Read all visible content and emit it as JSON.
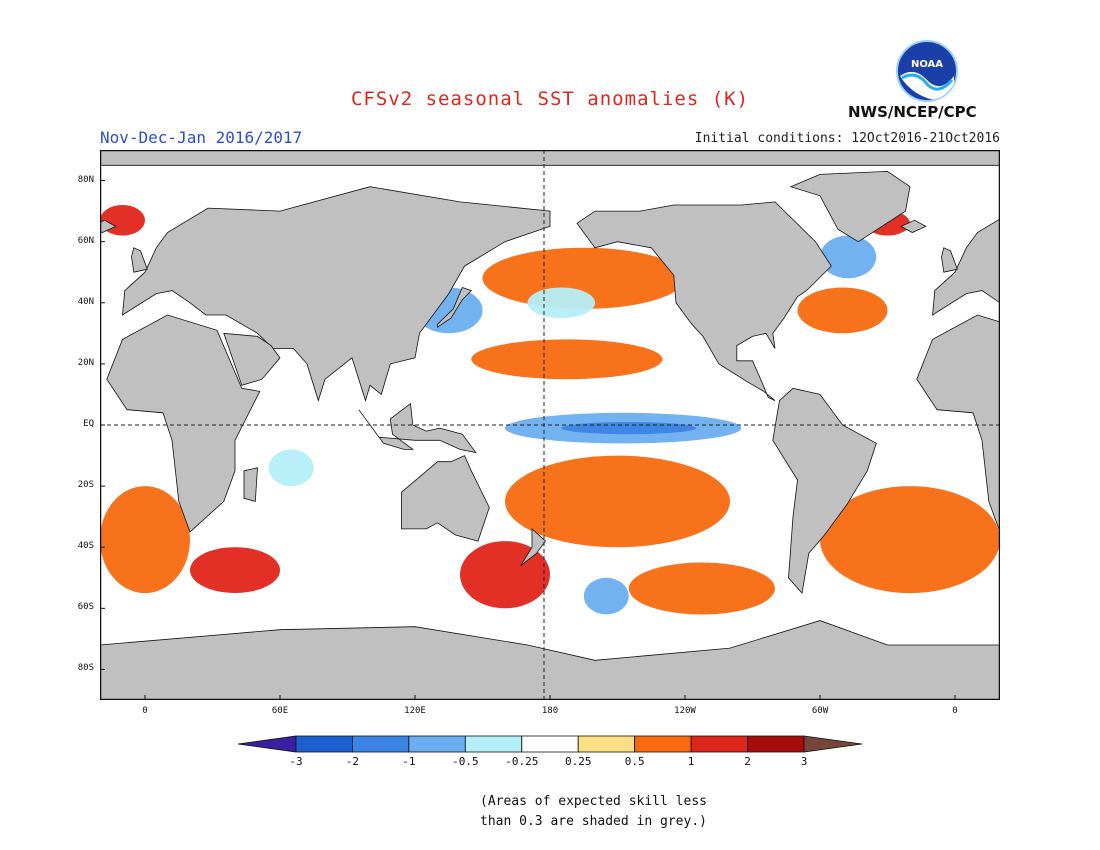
{
  "title": "CFSv2 seasonal SST anomalies (K)",
  "period": "Nov-Dec-Jan 2016/2017",
  "initial_conditions": "Initial conditions: 12Oct2016-21Oct2016",
  "agency": "NWS/NCEP/CPC",
  "logo_text": "NOAA",
  "lat_labels": [
    "80N",
    "60N",
    "40N",
    "20N",
    "EQ",
    "20S",
    "40S",
    "60S",
    "80S"
  ],
  "lon_labels": [
    "0",
    "60E",
    "120E",
    "180",
    "120W",
    "60W",
    "0"
  ],
  "colorbar": {
    "labels": [
      "-3",
      "-2",
      "-1",
      "-0.5",
      "-0.25",
      "0.25",
      "0.5",
      "1",
      "2",
      "3"
    ],
    "colors": [
      "#3a1fa0",
      "#1e5fd0",
      "#3c84e4",
      "#6aaef0",
      "#b4eef8",
      "#ffffff",
      "#fbe083",
      "#f86a10",
      "#e0251b",
      "#a80d0d",
      "#77463a"
    ]
  },
  "colors": {
    "land": "#c0c0c0",
    "ocean_neutral": "#ffffff",
    "title": "#e0251b",
    "period": "#2a4fd0"
  },
  "note_lines": [
    "(Areas of expected skill less",
    "than 0.3 are shaded in grey.)"
  ],
  "chart_data": {
    "type": "heatmap",
    "title": "CFSv2 seasonal SST anomalies (K)",
    "variable": "SST anomaly",
    "units": "K",
    "period": "Nov-Dec-Jan 2016/2017",
    "initial_conditions": "12Oct2016-21Oct2016",
    "color_levels": [
      -3,
      -2,
      -1,
      -0.5,
      -0.25,
      0.25,
      0.5,
      1,
      2,
      3
    ],
    "x_ticks": [
      "0",
      "60E",
      "120E",
      "180",
      "120W",
      "60W",
      "0"
    ],
    "y_ticks": [
      "80N",
      "60N",
      "40N",
      "20N",
      "EQ",
      "20S",
      "40S",
      "60S",
      "80S"
    ],
    "lon_range": [
      -20,
      380
    ],
    "lat_range": [
      -90,
      90
    ],
    "grey_mask_meaning": "expected skill less than 0.3",
    "regions": [
      {
        "lon": [
          160,
          265
        ],
        "lat": [
          -6,
          4
        ],
        "value": -0.75
      },
      {
        "lon": [
          185,
          245
        ],
        "lat": [
          -3,
          1
        ],
        "value": -1.1
      },
      {
        "lon": [
          145,
          230
        ],
        "lat": [
          15,
          28
        ],
        "value": 0.8
      },
      {
        "lon": [
          150,
          240
        ],
        "lat": [
          38,
          58
        ],
        "value": 0.8
      },
      {
        "lon": [
          170,
          200
        ],
        "lat": [
          35,
          45
        ],
        "value": -0.5
      },
      {
        "lon": [
          120,
          150
        ],
        "lat": [
          30,
          45
        ],
        "value": -0.6
      },
      {
        "lon": [
          160,
          260
        ],
        "lat": [
          -40,
          -10
        ],
        "value": 0.8
      },
      {
        "lon": [
          140,
          180
        ],
        "lat": [
          -60,
          -38
        ],
        "value": 1.4
      },
      {
        "lon": [
          215,
          280
        ],
        "lat": [
          -62,
          -45
        ],
        "value": 0.8
      },
      {
        "lon": [
          195,
          215
        ],
        "lat": [
          -62,
          -50
        ],
        "value": -0.6
      },
      {
        "lon": [
          55,
          75
        ],
        "lat": [
          -20,
          -8
        ],
        "value": -0.5
      },
      {
        "lon": [
          -20,
          20
        ],
        "lat": [
          -55,
          -20
        ],
        "value": 0.8
      },
      {
        "lon": [
          -20,
          0
        ],
        "lat": [
          62,
          72
        ],
        "value": 1.6
      },
      {
        "lon": [
          320,
          340
        ],
        "lat": [
          62,
          70
        ],
        "value": 1.6
      },
      {
        "lon": [
          300,
          325
        ],
        "lat": [
          48,
          62
        ],
        "value": -0.6
      },
      {
        "lon": [
          290,
          330
        ],
        "lat": [
          30,
          45
        ],
        "value": 0.8
      },
      {
        "lon": [
          300,
          380
        ],
        "lat": [
          -55,
          -20
        ],
        "value": 0.8
      },
      {
        "lon": [
          20,
          60
        ],
        "lat": [
          -55,
          -40
        ],
        "value": 1.3
      }
    ]
  }
}
